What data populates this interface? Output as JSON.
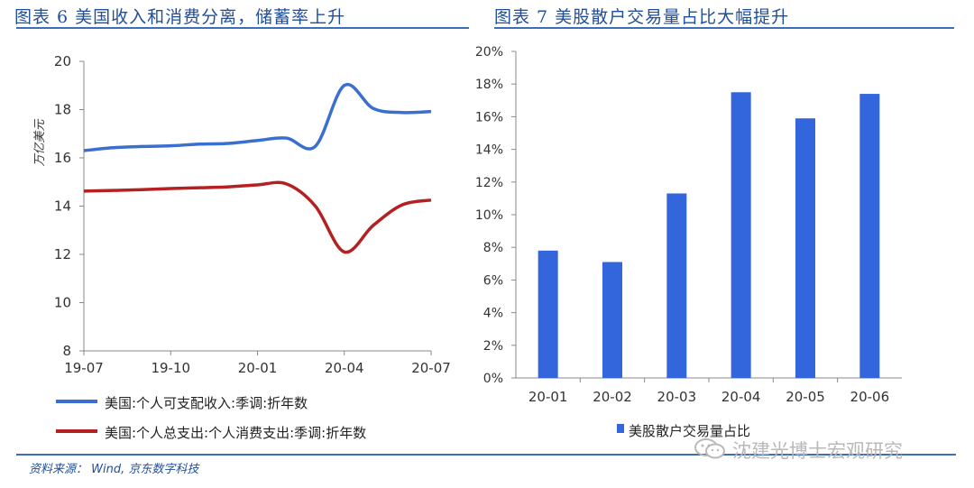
{
  "left_title": "图表 6  美国收入和消费分离，储蓄率上升",
  "right_title": "图表 7  美股散户交易量占比大幅提升",
  "source": "资料来源： Wind, 京东数字科技",
  "watermark": "沈建光博士宏观研究",
  "chart_data": [
    {
      "type": "line",
      "ylabel": "万亿美元",
      "ylim": [
        8,
        20
      ],
      "yticks": [
        "8",
        "10",
        "12",
        "14",
        "16",
        "18",
        "20"
      ],
      "xticks": [
        "19-07",
        "19-10",
        "20-01",
        "20-04",
        "20-07"
      ],
      "x": [
        "19-07",
        "19-08",
        "19-09",
        "19-10",
        "19-11",
        "19-12",
        "20-01",
        "20-02",
        "20-03",
        "20-04",
        "20-05",
        "20-06",
        "20-07"
      ],
      "grid": false,
      "legend_position": "bottom",
      "series": [
        {
          "name": "美国:个人可支配收入:季调:折年数",
          "color": "#3a6fd0",
          "values": [
            16.3,
            16.42,
            16.47,
            16.5,
            16.57,
            16.6,
            16.72,
            16.82,
            16.48,
            19.0,
            18.05,
            17.88,
            17.92
          ]
        },
        {
          "name": "美国:个人总支出:个人消费支出:季调:折年数",
          "color": "#b52020",
          "values": [
            14.62,
            14.65,
            14.68,
            14.73,
            14.76,
            14.8,
            14.88,
            14.92,
            14.0,
            12.1,
            13.2,
            14.05,
            14.25
          ]
        }
      ]
    },
    {
      "type": "bar",
      "categories": [
        "20-01",
        "20-02",
        "20-03",
        "20-04",
        "20-05",
        "20-06"
      ],
      "values": [
        7.8,
        7.1,
        11.3,
        17.5,
        15.9,
        17.4
      ],
      "ylim": [
        0,
        20
      ],
      "yticks": [
        "0%",
        "2%",
        "4%",
        "6%",
        "8%",
        "10%",
        "12%",
        "14%",
        "16%",
        "18%",
        "20%"
      ],
      "grid": false,
      "legend_position": "bottom",
      "series": [
        {
          "name": "美股散户交易量占比",
          "color": "#3366dd"
        }
      ]
    }
  ]
}
